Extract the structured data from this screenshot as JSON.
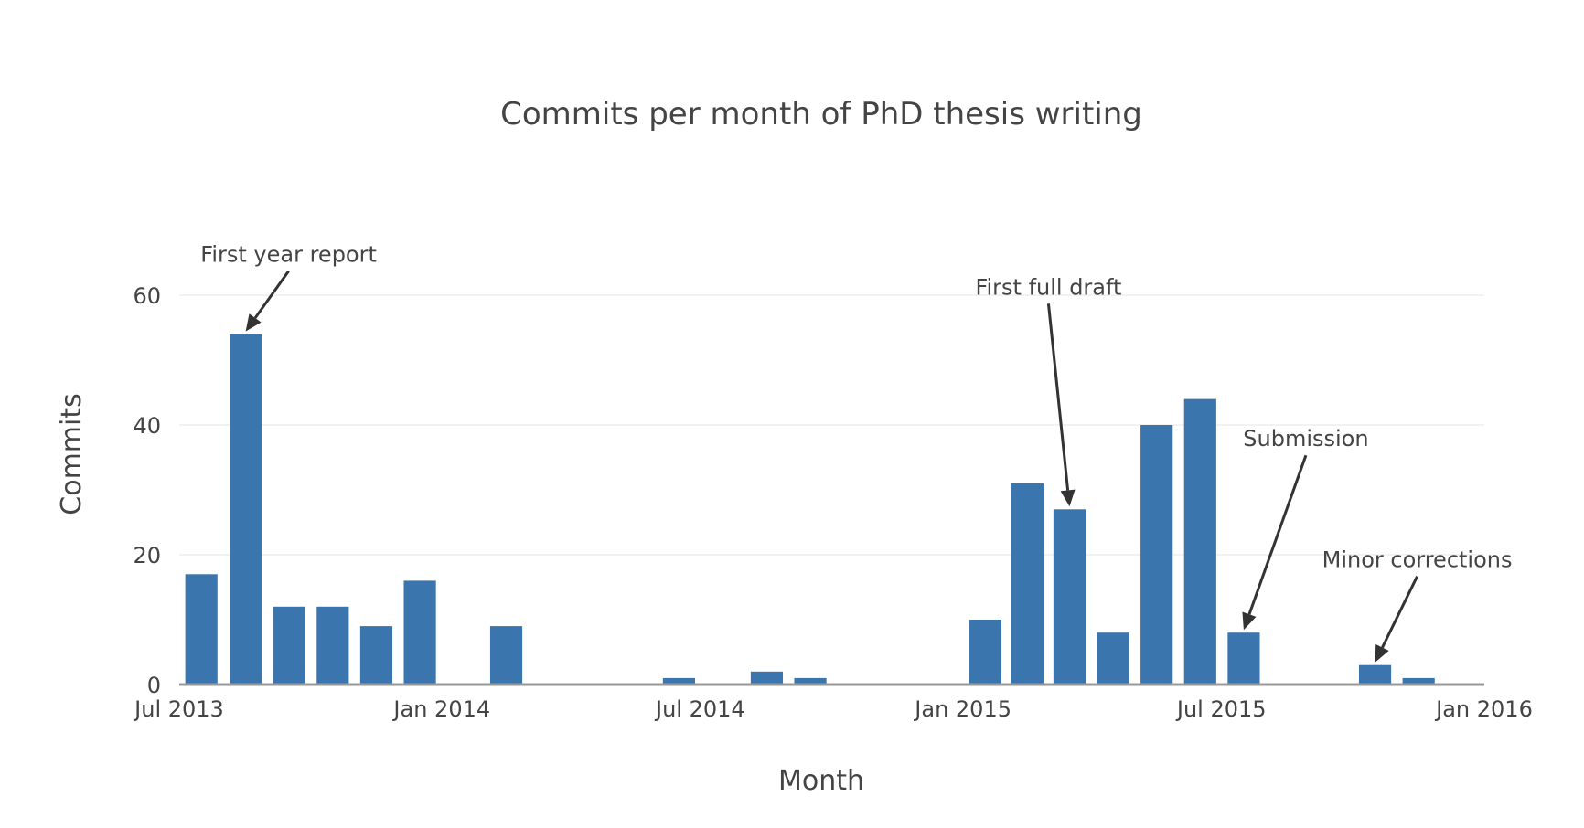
{
  "chart_data": {
    "type": "bar",
    "title": "Commits per month of PhD thesis writing",
    "xlabel": "Month",
    "ylabel": "Commits",
    "ylim": [
      0,
      70
    ],
    "yticks": [
      0,
      20,
      40,
      60
    ],
    "x_range": [
      "2013-07-01",
      "2016-01-01"
    ],
    "xticks": [
      {
        "date": "2013-07-01",
        "label": "Jul 2013"
      },
      {
        "date": "2014-01-01",
        "label": "Jan 2014"
      },
      {
        "date": "2014-07-01",
        "label": "Jul 2014"
      },
      {
        "date": "2015-01-01",
        "label": "Jan 2015"
      },
      {
        "date": "2015-07-01",
        "label": "Jul 2015"
      },
      {
        "date": "2016-01-01",
        "label": "Jan 2016"
      }
    ],
    "grid": true,
    "bar_color": "#3a75ae",
    "points": [
      {
        "month": "2013-07",
        "value": 17
      },
      {
        "month": "2013-08",
        "value": 54
      },
      {
        "month": "2013-09",
        "value": 12
      },
      {
        "month": "2013-10",
        "value": 12
      },
      {
        "month": "2013-11",
        "value": 9
      },
      {
        "month": "2013-12",
        "value": 16
      },
      {
        "month": "2014-02",
        "value": 9
      },
      {
        "month": "2014-06",
        "value": 1
      },
      {
        "month": "2014-08",
        "value": 2
      },
      {
        "month": "2014-09",
        "value": 1
      },
      {
        "month": "2015-01",
        "value": 10
      },
      {
        "month": "2015-02",
        "value": 31
      },
      {
        "month": "2015-03",
        "value": 27
      },
      {
        "month": "2015-04",
        "value": 8
      },
      {
        "month": "2015-05",
        "value": 40
      },
      {
        "month": "2015-06",
        "value": 44
      },
      {
        "month": "2015-07",
        "value": 8
      },
      {
        "month": "2015-10",
        "value": 3
      },
      {
        "month": "2015-11",
        "value": 1
      }
    ],
    "annotations": [
      {
        "text": "First year report",
        "month": "2013-08",
        "value": 54
      },
      {
        "text": "First full draft",
        "month": "2015-03",
        "value": 27
      },
      {
        "text": "Submission",
        "month": "2015-07",
        "value": 8
      },
      {
        "text": "Minor corrections",
        "month": "2015-10",
        "value": 3
      }
    ]
  }
}
